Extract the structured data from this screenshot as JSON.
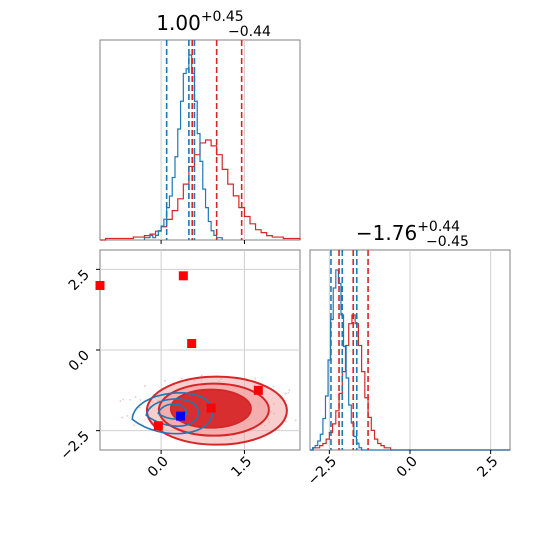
{
  "chart_data": {
    "type": "corner",
    "grid": true,
    "colors": {
      "blue": "#1f77b4",
      "red": "#d62728",
      "contour_fill_dark": "#d62728",
      "contour_fill_light": "#f2a6a6",
      "square_red": "#ff0000",
      "square_blue": "#0000ff"
    },
    "panels": [
      {
        "id": "hist_x",
        "title": {
          "main": "1.00",
          "sup": "+0.45",
          "sub": "−0.44"
        },
        "xlim": [
          -1.1,
          2.5
        ],
        "blue_quantile_lines": [
          0.1,
          0.5,
          0.6
        ],
        "red_quantile_lines": [
          0.56,
          1.0,
          1.45
        ],
        "blue_hist": {
          "edges_start": -0.3,
          "bin_width": 0.05,
          "counts": [
            1,
            1,
            2,
            1,
            2,
            4,
            6,
            9,
            14,
            19,
            27,
            36,
            48,
            60,
            72,
            74,
            80,
            72,
            60,
            46,
            34,
            22,
            14,
            8,
            4,
            2,
            1,
            1
          ]
        },
        "red_hist": {
          "edges_start": -1.1,
          "bin_width": 0.1,
          "counts": [
            0,
            1,
            1,
            1,
            1,
            1,
            2,
            2,
            3,
            4,
            6,
            9,
            14,
            20,
            28,
            38,
            50,
            58,
            66,
            68,
            64,
            58,
            48,
            38,
            30,
            22,
            16,
            11,
            7,
            5,
            3,
            2,
            2,
            1,
            1,
            1
          ]
        }
      },
      {
        "id": "scatter_xy",
        "xlim": [
          -1.1,
          2.5
        ],
        "ylim": [
          -3.1,
          3.1
        ],
        "xticks": [
          0.0,
          1.5
        ],
        "xtick_labels": [
          "0.0",
          "1.5"
        ],
        "yticks": [
          2.5,
          0.0,
          -2.5
        ],
        "ytick_labels": [
          "2.5",
          "0.0",
          "−2.5"
        ],
        "red_squares": [
          [
            -1.1,
            2.0
          ],
          [
            0.4,
            2.3
          ],
          [
            0.55,
            0.2
          ],
          [
            1.75,
            -1.25
          ],
          [
            0.9,
            -1.8
          ],
          [
            -0.05,
            -2.35
          ]
        ],
        "blue_square": [
          0.35,
          -2.05
        ],
        "red_contour_center": [
          0.95,
          -1.85
        ],
        "blue_contour_center": [
          0.2,
          -1.9
        ]
      },
      {
        "id": "hist_y",
        "title": {
          "main": "−1.76",
          "sup": "+0.44",
          "sub": "−0.45"
        },
        "xlim": [
          -3.1,
          3.1
        ],
        "xticks": [
          -2.5,
          0.0,
          2.5
        ],
        "xtick_labels": [
          "−2.5",
          "0.0",
          "2.5"
        ],
        "blue_quantile_lines": [
          -2.45,
          -2.1,
          -1.65
        ],
        "red_quantile_lines": [
          -2.2,
          -1.76,
          -1.3
        ],
        "blue_hist": {
          "edges_start": -3.1,
          "bin_width": 0.08,
          "counts": [
            0,
            1,
            2,
            4,
            7,
            14,
            24,
            40,
            58,
            72,
            80,
            74,
            60,
            46,
            32,
            20,
            12,
            6,
            3,
            1
          ]
        },
        "red_hist": {
          "edges_start": -3.1,
          "bin_width": 0.1,
          "counts": [
            0,
            1,
            1,
            2,
            3,
            5,
            8,
            12,
            18,
            26,
            36,
            48,
            58,
            62,
            58,
            48,
            36,
            24,
            15,
            9,
            5,
            3,
            2,
            1,
            1
          ]
        }
      }
    ]
  }
}
